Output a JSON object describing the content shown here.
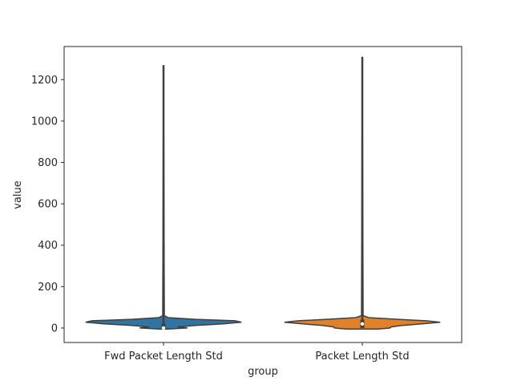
{
  "chart_data": {
    "type": "violin",
    "title": "",
    "xlabel": "group",
    "ylabel": "value",
    "ylim": [
      -70,
      1360
    ],
    "yticks": [
      0,
      200,
      400,
      600,
      800,
      1000,
      1200
    ],
    "categories": [
      "Fwd Packet Length Std",
      "Packet Length Std"
    ],
    "violins": [
      {
        "category": "Fwd Packet Length Std",
        "color": "#3274a1",
        "min": 0,
        "max": 1270,
        "median": 0,
        "q1": 0,
        "q3": 20,
        "profile": [
          {
            "v": -5,
            "w": 0.05
          },
          {
            "v": 0,
            "w": 0.3
          },
          {
            "v": 5,
            "w": 0.18
          },
          {
            "v": 12,
            "w": 0.4
          },
          {
            "v": 20,
            "w": 0.75
          },
          {
            "v": 28,
            "w": 0.98
          },
          {
            "v": 35,
            "w": 0.9
          },
          {
            "v": 42,
            "w": 0.4
          },
          {
            "v": 50,
            "w": 0.06
          },
          {
            "v": 60,
            "w": 0.01
          },
          {
            "v": 1270,
            "w": 0.0
          }
        ]
      },
      {
        "category": "Packet Length Std",
        "color": "#e1812c",
        "min": 0,
        "max": 1310,
        "median": 20,
        "q1": 0,
        "q3": 40,
        "profile": [
          {
            "v": -5,
            "w": 0.2
          },
          {
            "v": 0,
            "w": 0.35
          },
          {
            "v": 5,
            "w": 0.36
          },
          {
            "v": 12,
            "w": 0.5
          },
          {
            "v": 20,
            "w": 0.75
          },
          {
            "v": 28,
            "w": 0.98
          },
          {
            "v": 35,
            "w": 0.8
          },
          {
            "v": 42,
            "w": 0.45
          },
          {
            "v": 50,
            "w": 0.08
          },
          {
            "v": 60,
            "w": 0.01
          },
          {
            "v": 1310,
            "w": 0.0
          }
        ]
      }
    ],
    "grid": false,
    "legend": "none"
  }
}
